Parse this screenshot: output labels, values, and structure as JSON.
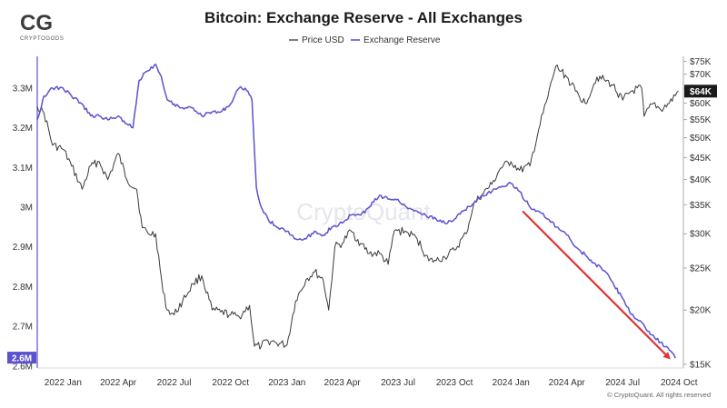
{
  "branding": {
    "logo_mark": "CG",
    "logo_name": "CRYPTOGODS",
    "watermark": "CryptoQuant",
    "copyright": "© CryptoQuant. All rights reserved"
  },
  "chart_data": {
    "type": "line",
    "title": "Bitcoin: Exchange Reserve - All Exchanges",
    "legend_position": "top-center",
    "grid": false,
    "x_ticks": [
      "2022 Jan",
      "2022 Apr",
      "2022 Jul",
      "2022 Oct",
      "2023 Jan",
      "2023 Apr",
      "2023 Jul",
      "2023 Oct",
      "2024 Jan",
      "2024 Apr",
      "2024 Jul",
      "2024 Oct"
    ],
    "left_axis": {
      "ticks": [
        "3.3M",
        "3.2M",
        "3.1M",
        "3M",
        "2.9M",
        "2.8M",
        "2.7M",
        "2.6M"
      ],
      "tick_values": [
        3.3,
        3.2,
        3.1,
        3.0,
        2.9,
        2.8,
        2.7,
        2.6
      ],
      "range": [
        2.595,
        3.38
      ],
      "current_label": "2.6M"
    },
    "right_axis": {
      "scale": "log",
      "ticks": [
        "$75K",
        "$70K",
        "$65K",
        "$60K",
        "$55K",
        "$50K",
        "$45K",
        "$40K",
        "$35K",
        "$30K",
        "$25K",
        "$20K",
        "$15K"
      ],
      "tick_values": [
        75,
        70,
        65,
        60,
        55,
        50,
        45,
        40,
        35,
        30,
        25,
        20,
        15
      ],
      "range": [
        14.7,
        77
      ],
      "current_label": "$64K"
    },
    "series": [
      {
        "name": "Price USD",
        "color": "#3a3a3a",
        "axis": "right",
        "unit": "K USD",
        "x": [
          "2021-11-20",
          "2021-12-01",
          "2021-12-15",
          "2022-01-01",
          "2022-01-15",
          "2022-02-01",
          "2022-02-15",
          "2022-03-01",
          "2022-03-15",
          "2022-04-01",
          "2022-04-15",
          "2022-05-01",
          "2022-05-10",
          "2022-05-20",
          "2022-06-01",
          "2022-06-13",
          "2022-06-20",
          "2022-07-01",
          "2022-07-15",
          "2022-08-01",
          "2022-08-15",
          "2022-09-01",
          "2022-09-15",
          "2022-10-01",
          "2022-10-15",
          "2022-11-01",
          "2022-11-09",
          "2022-11-20",
          "2022-12-01",
          "2022-12-15",
          "2023-01-01",
          "2023-01-15",
          "2023-02-01",
          "2023-02-15",
          "2023-03-01",
          "2023-03-10",
          "2023-03-20",
          "2023-04-01",
          "2023-04-15",
          "2023-05-01",
          "2023-05-15",
          "2023-06-01",
          "2023-06-15",
          "2023-06-25",
          "2023-07-15",
          "2023-08-01",
          "2023-08-20",
          "2023-09-01",
          "2023-09-15",
          "2023-10-01",
          "2023-10-20",
          "2023-11-01",
          "2023-11-15",
          "2023-12-01",
          "2023-12-15",
          "2024-01-01",
          "2024-01-15",
          "2024-02-01",
          "2024-02-15",
          "2024-03-01",
          "2024-03-14",
          "2024-04-01",
          "2024-04-15",
          "2024-05-01",
          "2024-05-20",
          "2024-06-01",
          "2024-06-15",
          "2024-07-01",
          "2024-07-15",
          "2024-08-01",
          "2024-08-05",
          "2024-08-20",
          "2024-09-01",
          "2024-09-15",
          "2024-09-30"
        ],
        "values": [
          59,
          57,
          48,
          47,
          43,
          38,
          43,
          44,
          40,
          46,
          40,
          38,
          31,
          30,
          30,
          22,
          20,
          19.5,
          21,
          23,
          24,
          20,
          19.8,
          19.5,
          19.3,
          20.5,
          16.5,
          16.5,
          17,
          16.8,
          16.6,
          21,
          23.5,
          24.5,
          23.5,
          20,
          28,
          28.5,
          30.5,
          28.5,
          27,
          27,
          25.5,
          30.5,
          30.3,
          29.2,
          26,
          26,
          26.5,
          27.5,
          30,
          35,
          37,
          39,
          42.5,
          44,
          42,
          43,
          52,
          62,
          73,
          69,
          64,
          60,
          69,
          68,
          66,
          61,
          64,
          65,
          56,
          60,
          58,
          60,
          64
        ]
      },
      {
        "name": "Exchange Reserve",
        "color": "#5b52d0",
        "axis": "left",
        "unit": "M BTC",
        "x": [
          "2021-11-20",
          "2021-12-01",
          "2021-12-15",
          "2022-01-01",
          "2022-01-15",
          "2022-02-01",
          "2022-02-15",
          "2022-03-01",
          "2022-03-15",
          "2022-04-01",
          "2022-04-15",
          "2022-04-25",
          "2022-05-05",
          "2022-05-15",
          "2022-06-01",
          "2022-06-10",
          "2022-06-20",
          "2022-07-01",
          "2022-07-15",
          "2022-08-01",
          "2022-08-15",
          "2022-09-01",
          "2022-09-15",
          "2022-10-01",
          "2022-10-15",
          "2022-10-25",
          "2022-11-05",
          "2022-11-12",
          "2022-11-20",
          "2022-12-01",
          "2022-12-15",
          "2023-01-01",
          "2023-01-15",
          "2023-02-01",
          "2023-02-15",
          "2023-03-01",
          "2023-03-15",
          "2023-04-01",
          "2023-04-15",
          "2023-05-01",
          "2023-05-15",
          "2023-06-01",
          "2023-06-15",
          "2023-07-01",
          "2023-07-15",
          "2023-08-01",
          "2023-08-15",
          "2023-09-01",
          "2023-09-15",
          "2023-10-01",
          "2023-10-15",
          "2023-11-01",
          "2023-11-15",
          "2023-12-01",
          "2023-12-15",
          "2024-01-01",
          "2024-01-15",
          "2024-02-01",
          "2024-02-15",
          "2024-03-01",
          "2024-03-15",
          "2024-04-01",
          "2024-04-15",
          "2024-05-01",
          "2024-05-15",
          "2024-06-01",
          "2024-06-15",
          "2024-07-01",
          "2024-07-15",
          "2024-08-01",
          "2024-08-15",
          "2024-09-01",
          "2024-09-15",
          "2024-09-25"
        ],
        "values": [
          3.22,
          3.28,
          3.3,
          3.3,
          3.28,
          3.26,
          3.23,
          3.23,
          3.22,
          3.23,
          3.21,
          3.2,
          3.32,
          3.34,
          3.36,
          3.33,
          3.27,
          3.26,
          3.25,
          3.25,
          3.23,
          3.24,
          3.24,
          3.26,
          3.3,
          3.3,
          3.27,
          3.05,
          3.0,
          2.97,
          2.95,
          2.94,
          2.92,
          2.92,
          2.94,
          2.93,
          2.95,
          2.96,
          2.98,
          2.98,
          3.0,
          3.03,
          3.02,
          3.02,
          3.0,
          2.99,
          2.98,
          2.97,
          2.96,
          2.97,
          2.99,
          3.01,
          3.03,
          3.04,
          3.05,
          3.06,
          3.04,
          3.0,
          2.99,
          2.97,
          2.95,
          2.93,
          2.9,
          2.88,
          2.86,
          2.84,
          2.81,
          2.77,
          2.73,
          2.71,
          2.68,
          2.66,
          2.64,
          2.62
        ]
      }
    ],
    "annotations": [
      {
        "type": "arrow",
        "color": "#e03434",
        "from": {
          "x": "2024-01-20",
          "y": 2.99
        },
        "to": {
          "x": "2024-09-15",
          "y": 2.62
        }
      }
    ]
  }
}
